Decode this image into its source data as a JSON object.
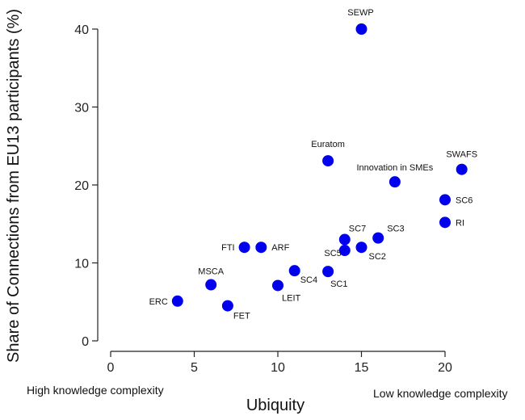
{
  "chart_data": {
    "type": "scatter",
    "xlabel": "Ubiquity",
    "ylabel": "Share of Connections from EU13 participants (%)",
    "xlim": [
      0,
      21
    ],
    "ylim": [
      0,
      40
    ],
    "x_ticks": [
      0,
      5,
      10,
      15,
      20
    ],
    "y_ticks": [
      0,
      10,
      20,
      30,
      40
    ],
    "grid": false,
    "legend": "none",
    "marker_color": "#0000ee",
    "points": [
      {
        "label": "SEWP",
        "x": 15,
        "y": 40
      },
      {
        "label": "Euratom",
        "x": 13,
        "y": 23.1
      },
      {
        "label": "SWAFS",
        "x": 21,
        "y": 22
      },
      {
        "label": "Innovation in SMEs",
        "x": 17,
        "y": 20.4
      },
      {
        "label": "SC6",
        "x": 20,
        "y": 18.1
      },
      {
        "label": "RI",
        "x": 20,
        "y": 15.2
      },
      {
        "label": "SC3",
        "x": 16,
        "y": 13.2
      },
      {
        "label": "SC7",
        "x": 14,
        "y": 13
      },
      {
        "label": "SC2",
        "x": 15,
        "y": 12
      },
      {
        "label": "SC5",
        "x": 14,
        "y": 11.6
      },
      {
        "label": "FTI",
        "x": 8,
        "y": 12
      },
      {
        "label": "ARF",
        "x": 9,
        "y": 12
      },
      {
        "label": "SC4",
        "x": 11,
        "y": 9
      },
      {
        "label": "SC1",
        "x": 13,
        "y": 8.9
      },
      {
        "label": "MSCA",
        "x": 6,
        "y": 7.2
      },
      {
        "label": "LEIT",
        "x": 10,
        "y": 7.1
      },
      {
        "label": "ERC",
        "x": 4,
        "y": 5.1
      },
      {
        "label": "FET",
        "x": 7,
        "y": 4.5
      }
    ],
    "annotations": {
      "left": "High knowledge complexity",
      "right": "Low knowledge complexity"
    }
  }
}
